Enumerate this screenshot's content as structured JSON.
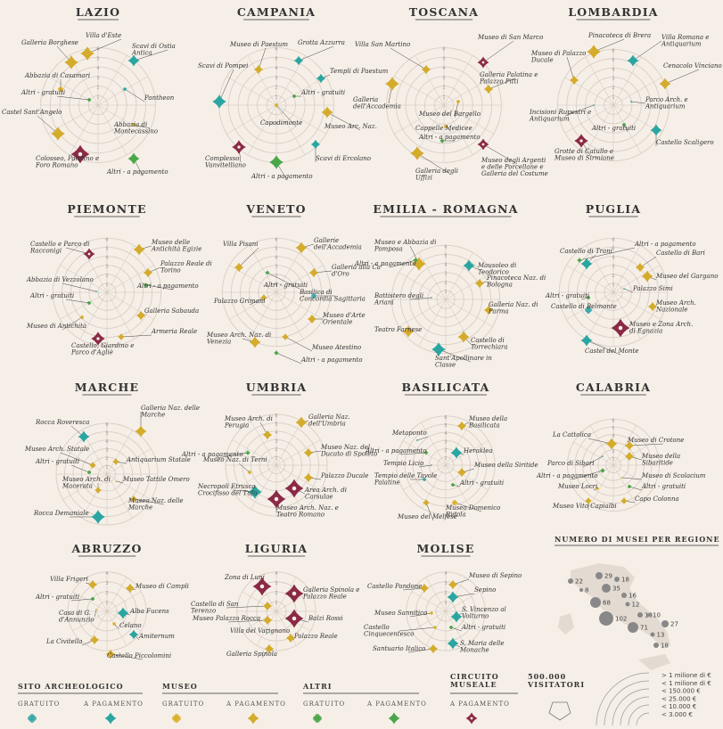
{
  "colors": {
    "archeo_free": "#3aa9a9",
    "archeo_paid": "#2aa6a2",
    "museo_free": "#d9b12a",
    "museo_paid": "#d4ab2b",
    "altri_free": "#4aa64a",
    "altri_paid": "#4aa64a",
    "circuito_paid": "#8b2a45"
  },
  "chart_data": [
    {
      "type": "radial",
      "region": "LAZIO",
      "rings": [
        1,
        2,
        3,
        4,
        5,
        6
      ],
      "sites": [
        {
          "name": "Villa d'Este",
          "cat": "museo",
          "paid": true
        },
        {
          "name": "Scavi di Ostia Antica",
          "cat": "archeo",
          "paid": true
        },
        {
          "name": "Galleria Borghese",
          "cat": "museo",
          "paid": true
        },
        {
          "name": "Pantheon",
          "cat": "archeo",
          "paid": false
        },
        {
          "name": "Abbazia di Casamari",
          "cat": "museo",
          "paid": false
        },
        {
          "name": "Altri - gratuiti",
          "cat": "altri",
          "paid": false
        },
        {
          "name": "Castel Sant'Angelo",
          "cat": "museo",
          "paid": true
        },
        {
          "name": "Abbazia di Montecassino",
          "cat": "museo",
          "paid": false
        },
        {
          "name": "Colosseo, Palatino e Foro Romano",
          "cat": "circuito",
          "paid": true
        },
        {
          "name": "Altri - a pagamento",
          "cat": "altri",
          "paid": true
        }
      ]
    },
    {
      "type": "radial",
      "region": "CAMPANIA",
      "rings": [
        1,
        2,
        3,
        4,
        5,
        6
      ],
      "sites": [
        {
          "name": "Museo di Paestum",
          "cat": "museo",
          "paid": true
        },
        {
          "name": "Grotta Azzurra",
          "cat": "archeo",
          "paid": true
        },
        {
          "name": "Templi di Paestum",
          "cat": "archeo",
          "paid": true
        },
        {
          "name": "Scavi di Pompei",
          "cat": "archeo",
          "paid": true
        },
        {
          "name": "Altri - gratuiti",
          "cat": "altri",
          "paid": false
        },
        {
          "name": "Capodimonte",
          "cat": "museo",
          "paid": false
        },
        {
          "name": "Museo Arc. Naz.",
          "cat": "museo",
          "paid": true
        },
        {
          "name": "Complesso Vanvitelliano",
          "cat": "circuito",
          "paid": true
        },
        {
          "name": "Scavi di Ercolano",
          "cat": "archeo",
          "paid": true
        },
        {
          "name": "Altri - a pagamento",
          "cat": "altri",
          "paid": true
        }
      ]
    },
    {
      "type": "radial",
      "region": "TOSCANA",
      "rings": [
        1,
        2,
        3,
        4,
        5,
        6
      ],
      "sites": [
        {
          "name": "Villa San Martino",
          "cat": "museo",
          "paid": true
        },
        {
          "name": "Museo di San Marco",
          "cat": "circuito",
          "paid": true
        },
        {
          "name": "Galleria dell'Accademia",
          "cat": "museo",
          "paid": true
        },
        {
          "name": "Galleria Palatina e Palazzo Pitti",
          "cat": "museo",
          "paid": true
        },
        {
          "name": "Museo del Bargello",
          "cat": "museo",
          "paid": false
        },
        {
          "name": "Cappelle Medicee",
          "cat": "museo",
          "paid": false
        },
        {
          "name": "Altri - a pagamento",
          "cat": "altri",
          "paid": true
        },
        {
          "name": "Galleria degli Uffizi",
          "cat": "museo",
          "paid": true
        },
        {
          "name": "Museo degli Argenti e delle Porcellane e Galleria del Costume",
          "cat": "circuito",
          "paid": true
        }
      ]
    },
    {
      "type": "radial",
      "region": "LOMBARDIA",
      "rings": [
        1,
        2,
        3,
        4,
        5,
        6
      ],
      "sites": [
        {
          "name": "Pinacoteca di Brera",
          "cat": "museo",
          "paid": true
        },
        {
          "name": "Villa Romana e Antiquarium",
          "cat": "archeo",
          "paid": true
        },
        {
          "name": "Museo di Palazzo Ducale",
          "cat": "museo",
          "paid": true
        },
        {
          "name": "Cenacolo Vinciano",
          "cat": "museo",
          "paid": true
        },
        {
          "name": "Parco Arch. e Antiquarium",
          "cat": "archeo",
          "paid": true
        },
        {
          "name": "Incisioni Rupestri e Antiquarium",
          "cat": "archeo",
          "paid": false
        },
        {
          "name": "Altri - gratuiti",
          "cat": "altri",
          "paid": false
        },
        {
          "name": "Castello Scaligero",
          "cat": "archeo",
          "paid": true
        },
        {
          "name": "Grotte di Catullo e Museo di Sirmione",
          "cat": "circuito",
          "paid": true
        }
      ]
    },
    {
      "type": "radial",
      "region": "PIEMONTE",
      "rings": [
        1,
        2,
        3,
        4,
        5,
        6
      ],
      "sites": [
        {
          "name": "Castello e Parco di Racconigi",
          "cat": "circuito",
          "paid": true
        },
        {
          "name": "Museo delle Antichità Egizie",
          "cat": "museo",
          "paid": true
        },
        {
          "name": "Palazzo Reale di Torino",
          "cat": "museo",
          "paid": true
        },
        {
          "name": "Abbazia di Vezzolano",
          "cat": "archeo",
          "paid": false
        },
        {
          "name": "Altri - gratuiti",
          "cat": "altri",
          "paid": false
        },
        {
          "name": "Altri - a pagamento",
          "cat": "altri",
          "paid": true
        },
        {
          "name": "Galleria Sabauda",
          "cat": "museo",
          "paid": true
        },
        {
          "name": "Museo di Antichità",
          "cat": "museo",
          "paid": true
        },
        {
          "name": "Armeria Reale",
          "cat": "museo",
          "paid": true
        },
        {
          "name": "Castello, Giardino e Parco d'Agliè",
          "cat": "circuito",
          "paid": true
        }
      ]
    },
    {
      "type": "radial",
      "region": "VENETO",
      "rings": [
        1,
        2,
        3,
        4,
        5,
        6
      ],
      "sites": [
        {
          "name": "Villa Pisani",
          "cat": "museo",
          "paid": true
        },
        {
          "name": "Gallerie dell'Accademia",
          "cat": "museo",
          "paid": true
        },
        {
          "name": "Galleria alla Ca' d'Oro",
          "cat": "museo",
          "paid": true
        },
        {
          "name": "Altri - gratuiti",
          "cat": "altri",
          "paid": false
        },
        {
          "name": "Palazzo Grimani",
          "cat": "museo",
          "paid": true
        },
        {
          "name": "Basilica di Concordia Sagittaria",
          "cat": "archeo",
          "paid": false
        },
        {
          "name": "Museo d'Arte Orientale",
          "cat": "museo",
          "paid": true
        },
        {
          "name": "Museo Arch. Naz. di Venezia",
          "cat": "museo",
          "paid": true
        },
        {
          "name": "Museo Atestino",
          "cat": "museo",
          "paid": true
        },
        {
          "name": "Altri - a pagamento",
          "cat": "altri",
          "paid": true
        }
      ]
    },
    {
      "type": "radial",
      "region": "EMILIA - ROMAGNA",
      "rings": [
        1,
        2,
        3,
        4,
        5,
        6
      ],
      "sites": [
        {
          "name": "Museo e Abbazia di Pomposa",
          "cat": "museo",
          "paid": true
        },
        {
          "name": "Altri - a pagamento",
          "cat": "altri",
          "paid": true
        },
        {
          "name": "Mausoleo di Teodorico",
          "cat": "archeo",
          "paid": true
        },
        {
          "name": "Pinacoteca Naz. di Bologna",
          "cat": "museo",
          "paid": true
        },
        {
          "name": "Battistero degli Ariani",
          "cat": "archeo",
          "paid": false
        },
        {
          "name": "Galleria Naz. di Parma",
          "cat": "museo",
          "paid": true
        },
        {
          "name": "Teatro Farnese",
          "cat": "museo",
          "paid": true
        },
        {
          "name": "Castello di Torrechiara",
          "cat": "museo",
          "paid": true
        },
        {
          "name": "Sant'Apollinare in Classe",
          "cat": "archeo",
          "paid": true
        }
      ]
    },
    {
      "type": "radial",
      "region": "PUGLIA",
      "rings": [
        1,
        2,
        3,
        4,
        5,
        6
      ],
      "sites": [
        {
          "name": "Castello di Trani",
          "cat": "archeo",
          "paid": true
        },
        {
          "name": "Altri - a pagamento",
          "cat": "altri",
          "paid": true
        },
        {
          "name": "Castello di Bari",
          "cat": "museo",
          "paid": true
        },
        {
          "name": "Museo del Gargano",
          "cat": "museo",
          "paid": true
        },
        {
          "name": "Palazzo Simi",
          "cat": "archeo",
          "paid": false
        },
        {
          "name": "Altri - gratuiti",
          "cat": "altri",
          "paid": false
        },
        {
          "name": "Castello di Belmonte",
          "cat": "archeo",
          "paid": false
        },
        {
          "name": "Museo Arch. Nazionale",
          "cat": "museo",
          "paid": true
        },
        {
          "name": "Museo e Zona Arch. di Egnazia",
          "cat": "circuito",
          "paid": true
        },
        {
          "name": "Castel del Monte",
          "cat": "archeo",
          "paid": true
        }
      ]
    },
    {
      "type": "radial",
      "region": "MARCHE",
      "rings": [
        1,
        2,
        3,
        4,
        5,
        6
      ],
      "sites": [
        {
          "name": "Rocca Roveresca",
          "cat": "archeo",
          "paid": true
        },
        {
          "name": "Galleria Naz. delle Marche",
          "cat": "museo",
          "paid": true
        },
        {
          "name": "Museo Arch. Statale",
          "cat": "museo",
          "paid": true
        },
        {
          "name": "Altri - gratuiti",
          "cat": "altri",
          "paid": false
        },
        {
          "name": "Antiquarium Statale",
          "cat": "museo",
          "paid": true
        },
        {
          "name": "Museo Arch. di Macerata",
          "cat": "museo",
          "paid": true
        },
        {
          "name": "Museo Tattile Omero",
          "cat": "museo",
          "paid": false
        },
        {
          "name": "Museo Naz. delle Marche",
          "cat": "museo",
          "paid": true
        },
        {
          "name": "Rocca Demaniale",
          "cat": "archeo",
          "paid": true
        }
      ]
    },
    {
      "type": "radial",
      "region": "UMBRIA",
      "rings": [
        1,
        2,
        3,
        4,
        5,
        6
      ],
      "sites": [
        {
          "name": "Museo Arch. di Perugia",
          "cat": "museo",
          "paid": true
        },
        {
          "name": "Galleria Naz. dell'Umbria",
          "cat": "museo",
          "paid": true
        },
        {
          "name": "Altri - a pagamento",
          "cat": "altri",
          "paid": true
        },
        {
          "name": "Museo Naz. del Ducato di Spoleto",
          "cat": "museo",
          "paid": true
        },
        {
          "name": "Museo Naz. di Terni",
          "cat": "museo",
          "paid": true
        },
        {
          "name": "Palazzo Ducale",
          "cat": "museo",
          "paid": true
        },
        {
          "name": "Necropoli Etrusca Crocifisso del Tufo",
          "cat": "archeo",
          "paid": true
        },
        {
          "name": "Area Arch. di Carsulae",
          "cat": "circuito",
          "paid": true
        },
        {
          "name": "Museo Arch. Naz. e Teatro Romano",
          "cat": "circuito",
          "paid": true
        }
      ]
    },
    {
      "type": "radial",
      "region": "BASILICATA",
      "rings": [
        1,
        2,
        3,
        4,
        5,
        6
      ],
      "sites": [
        {
          "name": "Museo della Basilicata",
          "cat": "museo",
          "paid": true
        },
        {
          "name": "Metaponto",
          "cat": "archeo",
          "paid": true
        },
        {
          "name": "Altri - a pagamento",
          "cat": "altri",
          "paid": true
        },
        {
          "name": "Heraklea",
          "cat": "archeo",
          "paid": true
        },
        {
          "name": "Tempio Licio",
          "cat": "archeo",
          "paid": false
        },
        {
          "name": "Museo della Siritide",
          "cat": "museo",
          "paid": true
        },
        {
          "name": "Tempio delle Tavole Palatine",
          "cat": "archeo",
          "paid": false
        },
        {
          "name": "Altri - gratuiti",
          "cat": "altri",
          "paid": false
        },
        {
          "name": "Museo Domenico Ridola",
          "cat": "museo",
          "paid": false
        },
        {
          "name": "Museo del Melfese",
          "cat": "museo",
          "paid": true
        }
      ]
    },
    {
      "type": "radial",
      "region": "CALABRIA",
      "rings": [
        1,
        2,
        3,
        4,
        5,
        6
      ],
      "sites": [
        {
          "name": "La Cattolica",
          "cat": "museo",
          "paid": true
        },
        {
          "name": "Museo di Crotone",
          "cat": "museo",
          "paid": true
        },
        {
          "name": "Museo della Sibaritide",
          "cat": "museo",
          "paid": true
        },
        {
          "name": "Parco di Sibari",
          "cat": "archeo",
          "paid": false
        },
        {
          "name": "Altri - a pagamento",
          "cat": "altri",
          "paid": true
        },
        {
          "name": "Museo di Scolacium",
          "cat": "museo",
          "paid": false
        },
        {
          "name": "Museo Locri",
          "cat": "museo",
          "paid": false
        },
        {
          "name": "Altri - gratuiti",
          "cat": "altri",
          "paid": false
        },
        {
          "name": "Capo Colonna",
          "cat": "museo",
          "paid": true
        },
        {
          "name": "Museo Vito Capialbi",
          "cat": "museo",
          "paid": true
        }
      ]
    },
    {
      "type": "radial",
      "region": "ABRUZZO",
      "rings": [
        1,
        2,
        3,
        4
      ],
      "sites": [
        {
          "name": "Villa Frigeri",
          "cat": "museo",
          "paid": true
        },
        {
          "name": "Museo di Campli",
          "cat": "museo",
          "paid": true
        },
        {
          "name": "Altri - gratuiti",
          "cat": "altri",
          "paid": false
        },
        {
          "name": "Alba Fucens",
          "cat": "archeo",
          "paid": true
        },
        {
          "name": "Casa di G. d'Annunzio",
          "cat": "museo",
          "paid": true
        },
        {
          "name": "Celano",
          "cat": "museo",
          "paid": false
        },
        {
          "name": "Amiternum",
          "cat": "archeo",
          "paid": true
        },
        {
          "name": "La Civitella",
          "cat": "museo",
          "paid": true
        },
        {
          "name": "Castello Piccolomini",
          "cat": "museo",
          "paid": true
        }
      ]
    },
    {
      "type": "radial",
      "region": "LIGURIA",
      "rings": [
        1,
        2,
        3,
        4
      ],
      "sites": [
        {
          "name": "Zona di Luni",
          "cat": "circuito",
          "paid": true
        },
        {
          "name": "Galleria Spinola e Palazzo Reale",
          "cat": "circuito",
          "paid": true
        },
        {
          "name": "Castello di San Terenzo",
          "cat": "museo",
          "paid": true
        },
        {
          "name": "Balzi Rossi",
          "cat": "circuito",
          "paid": true
        },
        {
          "name": "Museo Palazzo Rocca",
          "cat": "museo",
          "paid": true
        },
        {
          "name": "Villa del Varignano",
          "cat": "archeo",
          "paid": false
        },
        {
          "name": "Palazzo Reale",
          "cat": "museo",
          "paid": true
        },
        {
          "name": "Galleria Spinola",
          "cat": "museo",
          "paid": true
        }
      ]
    },
    {
      "type": "radial",
      "region": "MOLISE",
      "rings": [
        1,
        2,
        3,
        4
      ],
      "sites": [
        {
          "name": "Museo di Sepino",
          "cat": "museo",
          "paid": true
        },
        {
          "name": "Castello Pandone",
          "cat": "museo",
          "paid": true
        },
        {
          "name": "Sepino",
          "cat": "archeo",
          "paid": true
        },
        {
          "name": "Museo Sannitico",
          "cat": "museo",
          "paid": false
        },
        {
          "name": "S. Vincenzo al Volturno",
          "cat": "archeo",
          "paid": true
        },
        {
          "name": "Castello Cinquecentesco",
          "cat": "museo",
          "paid": false
        },
        {
          "name": "Altri - gratuiti",
          "cat": "altri",
          "paid": false
        },
        {
          "name": "Santuario Italico",
          "cat": "museo",
          "paid": true
        },
        {
          "name": "S. Maria delle Monache",
          "cat": "archeo",
          "paid": true
        }
      ]
    }
  ],
  "museum_counts": {
    "title": "NUMERO DI MUSEI PER REGIONE",
    "values": [
      22,
      8,
      29,
      18,
      35,
      16,
      68,
      102,
      12,
      18,
      10,
      71,
      27,
      13,
      18
    ]
  },
  "legend": {
    "groups": [
      {
        "title": "SITO ARCHEOLOGICO",
        "items": [
          "GRATUITO",
          "A PAGAMENTO"
        ]
      },
      {
        "title": "MUSEO",
        "items": [
          "GRATUITO",
          "A PAGAMENTO"
        ]
      },
      {
        "title": "ALTRI",
        "items": [
          "GRATUITO",
          "A PAGAMENTO"
        ]
      },
      {
        "title": "CIRCUITO MUSEALE",
        "items": [
          "A PAGAMENTO"
        ]
      }
    ],
    "visitors_title": "500.000 VISITATORI",
    "revenue": [
      "> 1 milione di €",
      "< 1 milione di €",
      "< 150.000 €",
      "< 25.000 €",
      "< 10.000 €",
      "< 3.000 €"
    ]
  }
}
